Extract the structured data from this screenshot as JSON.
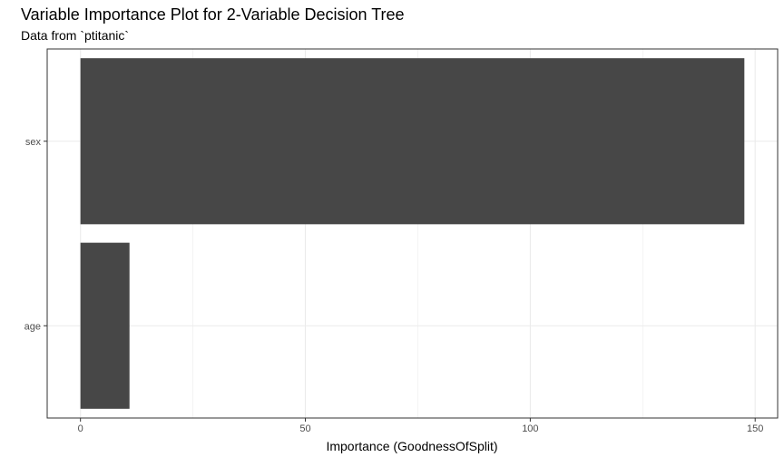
{
  "chart_data": {
    "type": "bar",
    "orientation": "horizontal",
    "title": "Variable Importance Plot for 2-Variable Decision Tree",
    "subtitle": "Data from `ptitanic`",
    "xlabel": "Importance (GoodnessOfSplit)",
    "ylabel": "",
    "categories": [
      "sex",
      "age"
    ],
    "values": [
      147.6,
      10.9
    ],
    "xlim": [
      -7.4,
      155
    ],
    "xticks": [
      0,
      50,
      100,
      150
    ],
    "grid": true,
    "bar_color": "#474747",
    "panel_border_color": "#333333",
    "grid_color": "#ebebeb"
  }
}
